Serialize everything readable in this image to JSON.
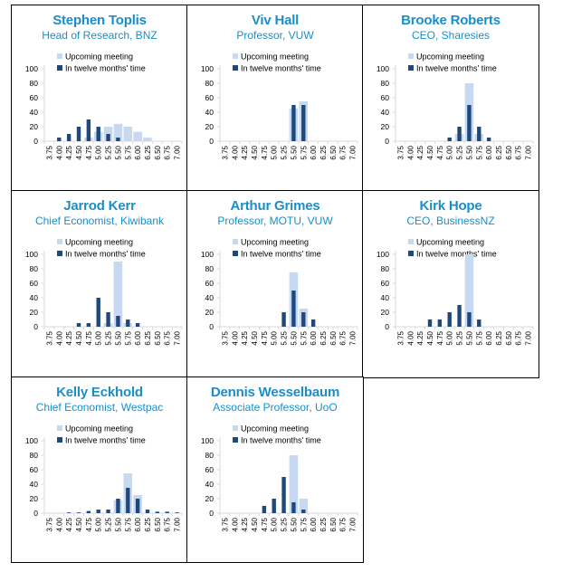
{
  "legend": {
    "upcoming": "Upcoming meeting",
    "twelve": "In twelve months' time"
  },
  "colors": {
    "title": "#1a8ec9",
    "upcoming": "#c6d9f0",
    "twelve": "#1f497d",
    "axis": "#d9d9d9",
    "text": "#000000"
  },
  "chart_data": [
    {
      "type": "bar",
      "title": "Stephen Toplis",
      "subtitle": "Head of Research, BNZ",
      "categories": [
        "3.75",
        "4.00",
        "4.25",
        "4.50",
        "4.75",
        "5.00",
        "5.25",
        "5.50",
        "5.75",
        "6.00",
        "6.25",
        "6.50",
        "6.75",
        "7.00"
      ],
      "yticks": [
        "0",
        "20",
        "40",
        "60",
        "80",
        "100"
      ],
      "ylim": [
        0,
        100
      ],
      "series": [
        {
          "name": "Upcoming meeting",
          "values": [
            0,
            0,
            0,
            0,
            5,
            13,
            20,
            24,
            20,
            13,
            5,
            0,
            0,
            0
          ]
        },
        {
          "name": "In twelve months' time",
          "values": [
            0,
            5,
            10,
            20,
            30,
            20,
            10,
            5,
            0,
            0,
            0,
            0,
            0,
            0
          ]
        }
      ]
    },
    {
      "type": "bar",
      "title": "Viv Hall",
      "subtitle": "Professor, VUW",
      "categories": [
        "3.75",
        "4.00",
        "4.25",
        "4.50",
        "4.75",
        "5.00",
        "5.25",
        "5.50",
        "5.75",
        "6.00",
        "6.25",
        "6.50",
        "6.75",
        "7.00"
      ],
      "yticks": [
        "0",
        "20",
        "40",
        "60",
        "80",
        "100"
      ],
      "ylim": [
        0,
        100
      ],
      "series": [
        {
          "name": "Upcoming meeting",
          "values": [
            0,
            0,
            0,
            0,
            0,
            0,
            0,
            45,
            55,
            0,
            0,
            0,
            0,
            0
          ]
        },
        {
          "name": "In twelve months' time",
          "values": [
            0,
            0,
            0,
            0,
            0,
            0,
            0,
            50,
            50,
            0,
            0,
            0,
            0,
            0
          ]
        }
      ]
    },
    {
      "type": "bar",
      "title": "Brooke Roberts",
      "subtitle": "CEO, Sharesies",
      "categories": [
        "3.75",
        "4.00",
        "4.25",
        "4.50",
        "4.75",
        "5.00",
        "5.25",
        "5.50",
        "5.75",
        "6.00",
        "6.25",
        "6.50",
        "6.75",
        "7.00"
      ],
      "yticks": [
        "0",
        "20",
        "40",
        "60",
        "80",
        "100"
      ],
      "ylim": [
        0,
        100
      ],
      "series": [
        {
          "name": "Upcoming meeting",
          "values": [
            0,
            0,
            0,
            0,
            0,
            0,
            10,
            80,
            10,
            0,
            0,
            0,
            0,
            0
          ]
        },
        {
          "name": "In twelve months' time",
          "values": [
            0,
            0,
            0,
            0,
            0,
            5,
            20,
            50,
            20,
            5,
            0,
            0,
            0,
            0
          ]
        }
      ]
    },
    {
      "type": "bar",
      "title": "Jarrod Kerr",
      "subtitle": "Chief Economist, Kiwibank",
      "categories": [
        "3.75",
        "4.00",
        "4.25",
        "4.50",
        "4.75",
        "5.00",
        "5.25",
        "5.50",
        "5.75",
        "6.00",
        "6.25",
        "6.50",
        "6.75",
        "7.00"
      ],
      "yticks": [
        "0",
        "20",
        "40",
        "60",
        "80",
        "100"
      ],
      "ylim": [
        0,
        100
      ],
      "series": [
        {
          "name": "Upcoming meeting",
          "values": [
            0,
            0,
            0,
            0,
            0,
            0,
            5,
            90,
            5,
            0,
            0,
            0,
            0,
            0
          ]
        },
        {
          "name": "In twelve months' time",
          "values": [
            0,
            0,
            0,
            5,
            5,
            40,
            20,
            15,
            10,
            5,
            0,
            0,
            0,
            0
          ]
        }
      ]
    },
    {
      "type": "bar",
      "title": "Arthur Grimes",
      "subtitle": "Professor, MOTU, VUW",
      "categories": [
        "3.75",
        "4.00",
        "4.25",
        "4.50",
        "4.75",
        "5.00",
        "5.25",
        "5.50",
        "5.75",
        "6.00",
        "6.25",
        "6.50",
        "6.75",
        "7.00"
      ],
      "yticks": [
        "0",
        "20",
        "40",
        "60",
        "80",
        "100"
      ],
      "ylim": [
        0,
        100
      ],
      "series": [
        {
          "name": "Upcoming meeting",
          "values": [
            0,
            0,
            0,
            0,
            0,
            0,
            0,
            75,
            25,
            0,
            0,
            0,
            0,
            0
          ]
        },
        {
          "name": "In twelve months' time",
          "values": [
            0,
            0,
            0,
            0,
            0,
            0,
            20,
            50,
            20,
            10,
            0,
            0,
            0,
            0
          ]
        }
      ]
    },
    {
      "type": "bar",
      "title": "Kirk Hope",
      "subtitle": "CEO, BusinessNZ",
      "categories": [
        "3.75",
        "4.00",
        "4.25",
        "4.50",
        "4.75",
        "5.00",
        "5.25",
        "5.50",
        "5.75",
        "6.00",
        "6.25",
        "6.50",
        "6.75",
        "7.00"
      ],
      "yticks": [
        "0",
        "20",
        "40",
        "60",
        "80",
        "100"
      ],
      "ylim": [
        0,
        100
      ],
      "series": [
        {
          "name": "Upcoming meeting",
          "values": [
            0,
            0,
            0,
            0,
            0,
            0,
            0,
            100,
            0,
            0,
            0,
            0,
            0,
            0
          ]
        },
        {
          "name": "In twelve months' time",
          "values": [
            0,
            0,
            0,
            10,
            10,
            20,
            30,
            20,
            10,
            0,
            0,
            0,
            0,
            0
          ]
        }
      ]
    },
    {
      "type": "bar",
      "title": "Kelly Eckhold",
      "subtitle": "Chief Economist, Westpac",
      "categories": [
        "3.75",
        "4.00",
        "4.25",
        "4.50",
        "4.75",
        "5.00",
        "5.25",
        "5.50",
        "5.75",
        "6.00",
        "6.25",
        "6.50",
        "6.75",
        "7.00"
      ],
      "yticks": [
        "0",
        "20",
        "40",
        "60",
        "80",
        "100"
      ],
      "ylim": [
        0,
        100
      ],
      "series": [
        {
          "name": "Upcoming meeting",
          "values": [
            0,
            0,
            0,
            0,
            0,
            0,
            0,
            18,
            55,
            25,
            0,
            0,
            0,
            0
          ]
        },
        {
          "name": "In twelve months' time",
          "values": [
            0,
            0,
            1,
            1,
            3,
            5,
            5,
            20,
            35,
            20,
            5,
            2,
            2,
            1
          ]
        }
      ]
    },
    {
      "type": "bar",
      "title": "Dennis Wesselbaum",
      "subtitle": "Associate Professor, UoO",
      "categories": [
        "3.75",
        "4.00",
        "4.25",
        "4.50",
        "4.75",
        "5.00",
        "5.25",
        "5.50",
        "5.75",
        "6.00",
        "6.25",
        "6.50",
        "6.75",
        "7.00"
      ],
      "yticks": [
        "0",
        "20",
        "40",
        "60",
        "80",
        "100"
      ],
      "ylim": [
        0,
        100
      ],
      "series": [
        {
          "name": "Upcoming meeting",
          "values": [
            0,
            0,
            0,
            0,
            0,
            0,
            0,
            80,
            20,
            0,
            0,
            0,
            0,
            0
          ]
        },
        {
          "name": "In twelve months' time",
          "values": [
            0,
            0,
            0,
            0,
            10,
            20,
            50,
            15,
            5,
            0,
            0,
            0,
            0,
            0
          ]
        }
      ]
    }
  ]
}
